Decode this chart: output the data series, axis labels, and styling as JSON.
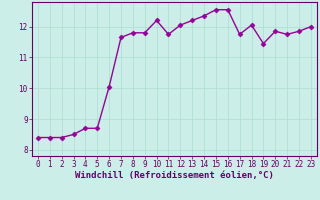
{
  "x": [
    0,
    1,
    2,
    3,
    4,
    5,
    6,
    7,
    8,
    9,
    10,
    11,
    12,
    13,
    14,
    15,
    16,
    17,
    18,
    19,
    20,
    21,
    22,
    23
  ],
  "y": [
    8.4,
    8.4,
    8.4,
    8.5,
    8.7,
    8.7,
    10.05,
    11.65,
    11.8,
    11.8,
    12.2,
    11.75,
    12.05,
    12.2,
    12.35,
    12.55,
    12.55,
    11.75,
    12.05,
    11.45,
    11.85,
    11.75,
    11.85,
    12.0
  ],
  "line_color": "#990099",
  "marker": "D",
  "markersize": 2.5,
  "linewidth": 1.0,
  "xlim": [
    -0.5,
    23.5
  ],
  "ylim": [
    7.8,
    12.8
  ],
  "yticks": [
    8,
    9,
    10,
    11,
    12
  ],
  "xticks": [
    0,
    1,
    2,
    3,
    4,
    5,
    6,
    7,
    8,
    9,
    10,
    11,
    12,
    13,
    14,
    15,
    16,
    17,
    18,
    19,
    20,
    21,
    22,
    23
  ],
  "xlabel": "Windchill (Refroidissement éolien,°C)",
  "xlabel_fontsize": 6.5,
  "xlabel_color": "#660066",
  "tick_color": "#660066",
  "tick_fontsize": 5.5,
  "background_color": "#cceee8",
  "grid_color": "#aaddcc",
  "spine_color": "#660066"
}
